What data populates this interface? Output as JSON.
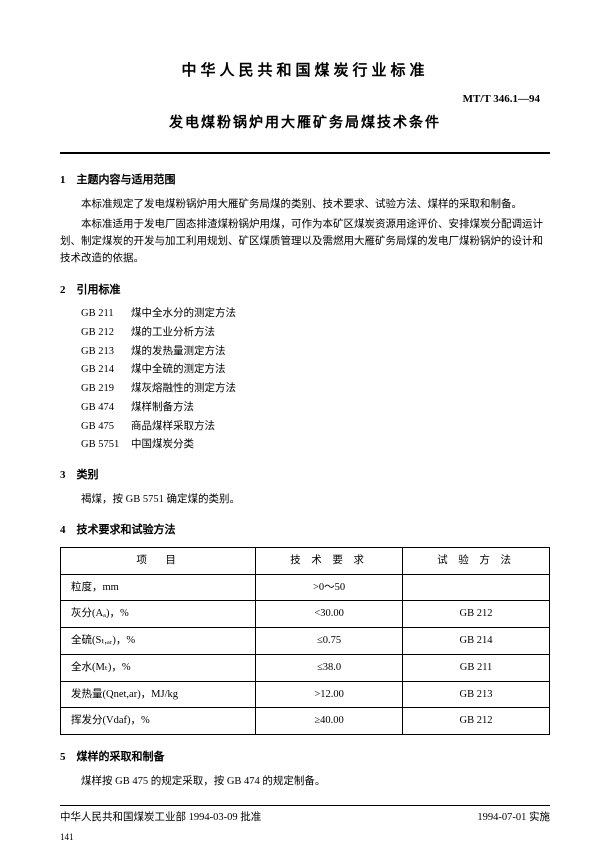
{
  "header": {
    "org_title": "中华人民共和国煤炭行业标准",
    "doc_number": "MT/T 346.1—94",
    "subtitle": "发电煤粉锅炉用大雁矿务局煤技术条件"
  },
  "section1": {
    "heading": "1　主题内容与适用范围",
    "p1": "本标准规定了发电煤粉锅炉用大雁矿务局煤的类别、技术要求、试验方法、煤样的采取和制备。",
    "p2": "本标准适用于发电厂固态排渣煤粉锅炉用煤，可作为本矿区煤炭资源用途评价、安排煤炭分配调运计划、制定煤炭的开发与加工利用规划、矿区煤质管理以及需燃用大雁矿务局煤的发电厂煤粉锅炉的设计和技术改造的依据。"
  },
  "section2": {
    "heading": "2　引用标准",
    "refs": [
      {
        "code": "GB 211",
        "title": "煤中全水分的测定方法"
      },
      {
        "code": "GB 212",
        "title": "煤的工业分析方法"
      },
      {
        "code": "GB 213",
        "title": "煤的发热量测定方法"
      },
      {
        "code": "GB 214",
        "title": "煤中全硫的测定方法"
      },
      {
        "code": "GB 219",
        "title": "煤灰熔融性的测定方法"
      },
      {
        "code": "GB 474",
        "title": "煤样制备方法"
      },
      {
        "code": "GB 475",
        "title": "商品煤样采取方法"
      },
      {
        "code": "GB 5751",
        "title": "中国煤炭分类"
      }
    ]
  },
  "section3": {
    "heading": "3　类别",
    "p1": "褐煤，按 GB 5751 确定煤的类别。"
  },
  "section4": {
    "heading": "4　技术要求和试验方法",
    "table": {
      "headers": [
        "项　目",
        "技 术 要 求",
        "试 验 方 法"
      ],
      "rows": [
        [
          "粒度，mm",
          ">0～50",
          ""
        ],
        [
          "灰分(Aₐ)，%",
          "<30.00",
          "GB 212"
        ],
        [
          "全硫(Sₜ,ₐᵣ)，%",
          "≤0.75",
          "GB 214"
        ],
        [
          "全水(Mₜ)，%",
          "≤38.0",
          "GB 211"
        ],
        [
          "发热量(Qnet,ar)，MJ/kg",
          ">12.00",
          "GB 213"
        ],
        [
          "挥发分(Vdaf)，%",
          "≥40.00",
          "GB 212"
        ]
      ]
    }
  },
  "section5": {
    "heading": "5　煤样的采取和制备",
    "p1": "煤样按 GB 475 的规定采取，按 GB 474 的规定制备。"
  },
  "footer": {
    "left": "中华人民共和国煤炭工业部 1994-03-09 批准",
    "right": "1994-07-01 实施",
    "page": "141"
  }
}
